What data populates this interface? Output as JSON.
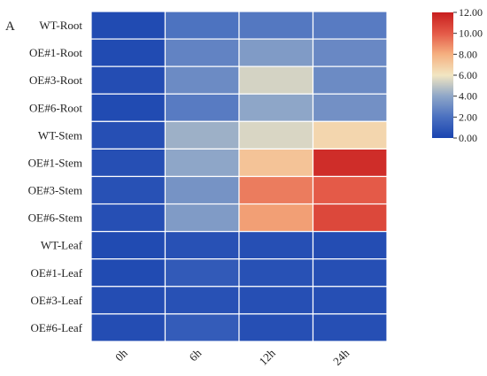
{
  "chart_data": {
    "type": "heatmap",
    "panel_label": "A",
    "rows": [
      "WT-Root",
      "OE#1-Root",
      "OE#3-Root",
      "OE#6-Root",
      "WT-Stem",
      "OE#1-Stem",
      "OE#3-Stem",
      "OE#6-Stem",
      "WT-Leaf",
      "OE#1-Leaf",
      "OE#3-Leaf",
      "OE#6-Leaf"
    ],
    "columns": [
      "0h",
      "6h",
      "12h",
      "24h"
    ],
    "values": [
      [
        0.3,
        2.1,
        2.3,
        2.4
      ],
      [
        0.3,
        2.7,
        3.6,
        2.9
      ],
      [
        0.4,
        3.0,
        5.4,
        3.0
      ],
      [
        0.3,
        2.4,
        4.0,
        3.2
      ],
      [
        0.5,
        4.3,
        5.5,
        6.6
      ],
      [
        0.5,
        4.0,
        7.3,
        11.5
      ],
      [
        0.6,
        3.3,
        9.2,
        10.0
      ],
      [
        0.5,
        3.6,
        8.4,
        10.6
      ],
      [
        0.3,
        0.6,
        0.5,
        0.4
      ],
      [
        0.3,
        1.0,
        0.6,
        0.5
      ],
      [
        0.4,
        0.6,
        0.5,
        0.5
      ],
      [
        0.4,
        1.1,
        0.5,
        0.5
      ]
    ],
    "colorbar": {
      "min": 0,
      "max": 12,
      "ticks": [
        "0.00",
        "2.00",
        "4.00",
        "6.00",
        "8.00",
        "10.00",
        "12.00"
      ],
      "colormap": [
        "#1a44b0",
        "#4a70c0",
        "#8ea6c8",
        "#f2e6c2",
        "#f5b080",
        "#e45a48",
        "#c81e1e"
      ]
    },
    "grid": "white"
  }
}
